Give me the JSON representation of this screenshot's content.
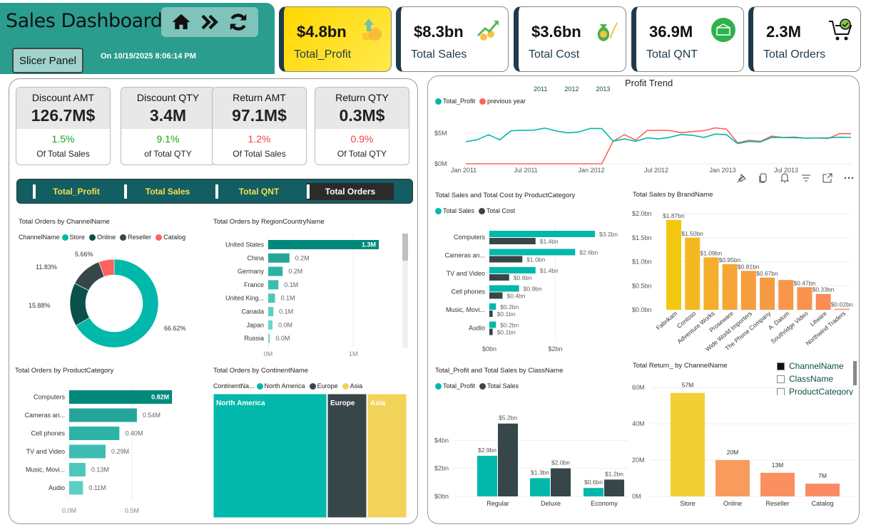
{
  "header": {
    "title": "Sales Dashboard",
    "nav_icons": [
      "home-icon",
      "double-chevron-right-icon",
      "refresh-icon"
    ],
    "slicer_button": "Slicer Panel",
    "refresh_text": "On 10/19/2025 8:06:14 PM"
  },
  "kpis": [
    {
      "value": "$4.8bn",
      "label": "Total_Profit",
      "icon": "profit-coins-icon",
      "highlight": true
    },
    {
      "value": "$8.3bn",
      "label": "Total Sales",
      "icon": "sales-growth-icon",
      "highlight": false
    },
    {
      "value": "$3.6bn",
      "label": "Total Cost",
      "icon": "money-bag-icon",
      "highlight": false
    },
    {
      "value": "36.9M",
      "label": "Total QNT",
      "icon": "warehouse-icon",
      "highlight": false
    },
    {
      "value": "2.3M",
      "label": "Total Orders",
      "icon": "cart-check-icon",
      "highlight": false
    }
  ],
  "cards": [
    {
      "title": "Discount AMT",
      "value": "126.7M$",
      "pct": "1.5%",
      "pct_color": "#1aa31a",
      "sub": "Of Total Sales"
    },
    {
      "title": "Discount QTY",
      "value": "3.4M",
      "pct": "9.1%",
      "pct_color": "#1aa31a",
      "sub": "of Total QTY"
    },
    {
      "title": "Return AMT",
      "value": "97.1M$",
      "pct": "1.2%",
      "pct_color": "#f04040",
      "sub": "Of Total Sales"
    },
    {
      "title": "Return QTY",
      "value": "0.3M$",
      "pct": "0.9%",
      "pct_color": "#f04040",
      "sub": "Of Total QTY"
    }
  ],
  "measure_tabs": [
    {
      "label": "Total_Profit",
      "active": false
    },
    {
      "label": "Total Sales",
      "active": false
    },
    {
      "label": "Total QNT",
      "active": false
    },
    {
      "label": "Total Orders",
      "active": true
    }
  ],
  "colors": {
    "teal": "#01b8aa",
    "dark": "#374649",
    "darkteal": "#0b5049",
    "red": "#fd625e",
    "yellow": "#f2c80f",
    "header": "#2a9d8f"
  },
  "visual_toolbar": [
    "pin-icon",
    "copy-icon",
    "alert-bell-icon",
    "filter-icon",
    "focus-mode-icon",
    "more-options-icon"
  ],
  "chart_data": [
    {
      "id": "donut",
      "type": "pie",
      "title": "Total Orders by ChannelName",
      "legend_title": "ChannelName",
      "categories": [
        "Store",
        "Online",
        "Reseller",
        "Catalog"
      ],
      "values": [
        66.62,
        15.88,
        11.83,
        5.66
      ],
      "labels": [
        "66.62%",
        "15.88%",
        "11.83%",
        "5.66%"
      ],
      "colors": [
        "#01b8aa",
        "#0b5049",
        "#374649",
        "#fd625e"
      ]
    },
    {
      "id": "region",
      "type": "bar",
      "title": "Total Orders by RegionCountryName",
      "categories": [
        "United States",
        "China",
        "Germany",
        "France",
        "United King...",
        "Canada",
        "Japan",
        "Russia"
      ],
      "values": [
        1.3,
        0.25,
        0.17,
        0.12,
        0.08,
        0.06,
        0.05,
        0.02
      ],
      "labels": [
        "1.3M",
        "0.2M",
        "0.2M",
        "0.1M",
        "0.1M",
        "0.1M",
        "0.0M",
        "0.0M"
      ],
      "xticks": [
        "0M",
        "1M"
      ],
      "xlim": [
        0,
        1.55
      ]
    },
    {
      "id": "prodcat",
      "type": "bar",
      "title": "Total Orders by ProductCategory",
      "categories": [
        "Computers",
        "Cameras an...",
        "Cell phones",
        "TV and Video",
        "Music, Movi...",
        "Audio"
      ],
      "values": [
        0.82,
        0.54,
        0.4,
        0.29,
        0.13,
        0.11
      ],
      "labels": [
        "0.82M",
        "0.54M",
        "0.40M",
        "0.29M",
        "0.13M",
        "0.11M"
      ],
      "xticks": [
        "0.0M",
        "0.5M"
      ],
      "xlim": [
        0,
        0.88
      ]
    },
    {
      "id": "continent",
      "type": "heatmap",
      "title": "Total Orders by ContinentName",
      "legend_title": "ContinentNa...",
      "categories": [
        "North America",
        "Europe",
        "Asia"
      ],
      "values": [
        59,
        20,
        21
      ],
      "colors": [
        "#01b8aa",
        "#374649",
        "#f2d35a"
      ]
    },
    {
      "id": "trend",
      "type": "line",
      "title": "Profit Trend",
      "year_slicer": [
        "2011",
        "2012",
        "2013"
      ],
      "series": [
        {
          "name": "Total_Profit",
          "color": "#01b8aa",
          "values": [
            3.6,
            3.8,
            4.6,
            3.9,
            5.5,
            5.6,
            5.5,
            5.7,
            5.2,
            5.0,
            5.3,
            5.9,
            5.8,
            3.6,
            3.9,
            3.6,
            4.3,
            4.2,
            4.4,
            4.7,
            4.5,
            4.2,
            4.9,
            4.9,
            3.4,
            3.6,
            3.4,
            4.2,
            4.3,
            4.4,
            4.3,
            4.2,
            4.1,
            4.2,
            4.3
          ]
        },
        {
          "name": "previous year",
          "color": "#fd625e",
          "values": [
            0,
            0,
            0,
            0,
            0,
            0,
            0,
            0,
            0,
            0,
            0,
            0,
            0,
            3.6,
            4.6,
            3.8,
            5.5,
            5.6,
            5.5,
            5.0,
            5.1,
            5.3,
            5.9,
            5.8,
            3.5,
            3.8,
            3.5,
            4.4,
            4.3,
            4.5,
            4.3,
            4.2,
            4.0,
            4.8,
            4.9
          ]
        }
      ],
      "xticks": [
        "Jan 2011",
        "Jul 2011",
        "Jan 2012",
        "Jul 2012",
        "Jan 2013",
        "Jul 2013"
      ],
      "yticks": [
        "$0M",
        "$5M"
      ],
      "ylim": [
        0,
        6.5
      ]
    },
    {
      "id": "salescost",
      "type": "bar",
      "title": "Total Sales and Total Cost by ProductCategory",
      "categories": [
        "Computers",
        "Cameras an...",
        "TV and Video",
        "Cell phones",
        "Music, Movi...",
        "Audio"
      ],
      "series": [
        {
          "name": "Total Sales",
          "color": "#01b8aa",
          "values": [
            3.2,
            2.6,
            1.4,
            0.9,
            0.2,
            0.2
          ],
          "labels": [
            "$3.2bn",
            "$2.6bn",
            "$1.4bn",
            "$0.9bn",
            "$0.2bn",
            "$0.2bn"
          ]
        },
        {
          "name": "Total Cost",
          "color": "#374649",
          "values": [
            1.4,
            1.0,
            0.6,
            0.4,
            0.1,
            0.1
          ],
          "labels": [
            "$1.4bn",
            "$1.0bn",
            "$0.6bn",
            "$0.4bn",
            "$0.1bn",
            "$0.1bn"
          ]
        }
      ],
      "xticks": [
        "$0bn",
        "$2bn"
      ],
      "xlim": [
        0,
        3.6
      ]
    },
    {
      "id": "brand",
      "type": "bar",
      "title": "Total Sales by BrandName",
      "categories": [
        "Fabrikam",
        "Contoso",
        "Adventure Works",
        "Proseware",
        "Wide World Importers",
        "The Phone Company",
        "A. Datum",
        "Southridge Video",
        "Litware",
        "Northwind Traders"
      ],
      "values": [
        1.87,
        1.5,
        1.09,
        0.95,
        0.81,
        0.67,
        0.62,
        0.47,
        0.33,
        0.02
      ],
      "labels": [
        "$1.87bn",
        "$1.50bn",
        "$1.09bn",
        "$0.95bn",
        "$0.81bn",
        "$0.67bn",
        "",
        "$0.47bn",
        "$0.33bn",
        "$0.02bn"
      ],
      "colors": [
        "#f2c80f",
        "#f4b922",
        "#f5ad2c",
        "#f6a536",
        "#f69e3d",
        "#f79a44",
        "#f8974a",
        "#f9924f",
        "#fa8c55",
        "#fb865b"
      ],
      "yticks": [
        "$0.0bn",
        "$0.5bn",
        "$1.0bn",
        "$1.5bn",
        "$2.0bn"
      ],
      "ylim": [
        0,
        2.0
      ]
    },
    {
      "id": "classname",
      "type": "bar",
      "title": "Total_Profit and Total Sales by ClassName",
      "categories": [
        "Regular",
        "Deluxe",
        "Economy"
      ],
      "series": [
        {
          "name": "Total_Profit",
          "color": "#01b8aa",
          "values": [
            2.9,
            1.3,
            0.6
          ],
          "labels": [
            "$2.9bn",
            "$1.3bn",
            "$0.6bn"
          ]
        },
        {
          "name": "Total Sales",
          "color": "#374649",
          "values": [
            5.2,
            2.0,
            1.2
          ],
          "labels": [
            "$5.2bn",
            "$2.0bn",
            "$1.2bn"
          ]
        }
      ],
      "yticks": [
        "$0bn",
        "$2bn",
        "$4bn"
      ],
      "ylim": [
        0,
        6
      ]
    },
    {
      "id": "returns",
      "type": "bar",
      "title": "Total Return_ by ChannelName",
      "categories": [
        "Store",
        "Online",
        "Reseller",
        "Catalog"
      ],
      "values": [
        57,
        20,
        13,
        7
      ],
      "labels": [
        "57M",
        "20M",
        "13M",
        "7M"
      ],
      "colors": [
        "#f2cf35",
        "#f99b5c",
        "#fa9060",
        "#fb8a63"
      ],
      "yticks": [
        "0M",
        "20M",
        "40M",
        "60M"
      ],
      "ylim": [
        0,
        62
      ],
      "field_picker": [
        {
          "label": "ChannelName",
          "checked": true
        },
        {
          "label": "ClassName",
          "checked": false
        },
        {
          "label": "ProductCategory",
          "checked": false
        }
      ]
    }
  ]
}
